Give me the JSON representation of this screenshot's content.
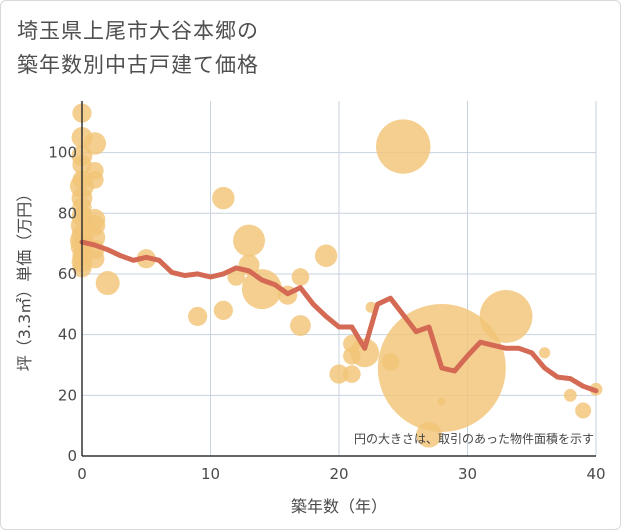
{
  "title": "埼玉県上尾市大谷本郷の\n築年数別中古戸建て価格",
  "chart_data": {
    "type": "scatter",
    "title": "埼玉県上尾市大谷本郷の築年数別中古戸建て価格",
    "xlabel": "築年数（年）",
    "ylabel": "坪（3.3㎡）単価（万円）",
    "xlim": [
      0,
      40
    ],
    "ylim": [
      0,
      117
    ],
    "x_ticks": [
      0,
      10,
      20,
      30,
      40
    ],
    "y_ticks": [
      0,
      20,
      40,
      60,
      80,
      100
    ],
    "grid": true,
    "note": "円の大きさは、取引のあった物件面積を示す",
    "colors": {
      "bubble": "#f2c477",
      "line": "#d46a54",
      "grid": "#c7d3df",
      "axis": "#333333"
    },
    "scatter": [
      {
        "x": 0,
        "y": 113,
        "size": 1.2
      },
      {
        "x": 0,
        "y": 105,
        "size": 1.3
      },
      {
        "x": 0,
        "y": 99,
        "size": 1.3
      },
      {
        "x": 0,
        "y": 96,
        "size": 1.2
      },
      {
        "x": 0,
        "y": 91,
        "size": 1.2
      },
      {
        "x": 0,
        "y": 89,
        "size": 1.5
      },
      {
        "x": 0,
        "y": 85,
        "size": 1.3
      },
      {
        "x": 0,
        "y": 82,
        "size": 1.2
      },
      {
        "x": 0,
        "y": 79,
        "size": 1.3
      },
      {
        "x": 0,
        "y": 76,
        "size": 1.4
      },
      {
        "x": 0,
        "y": 73,
        "size": 1.3
      },
      {
        "x": 0,
        "y": 71,
        "size": 1.5
      },
      {
        "x": 0,
        "y": 69,
        "size": 1.4
      },
      {
        "x": 0,
        "y": 66,
        "size": 1.2
      },
      {
        "x": 0,
        "y": 64,
        "size": 1.3
      },
      {
        "x": 0,
        "y": 62,
        "size": 1.2
      },
      {
        "x": 1,
        "y": 103,
        "size": 1.4
      },
      {
        "x": 1,
        "y": 94,
        "size": 1.1
      },
      {
        "x": 1,
        "y": 91,
        "size": 1.1
      },
      {
        "x": 1,
        "y": 78,
        "size": 1.3
      },
      {
        "x": 1,
        "y": 76,
        "size": 1.3
      },
      {
        "x": 1,
        "y": 72,
        "size": 1.3
      },
      {
        "x": 1,
        "y": 68,
        "size": 1.2
      },
      {
        "x": 1,
        "y": 65,
        "size": 1.2
      },
      {
        "x": 2,
        "y": 57,
        "size": 1.5
      },
      {
        "x": 5,
        "y": 65,
        "size": 1.2
      },
      {
        "x": 9,
        "y": 46,
        "size": 1.2
      },
      {
        "x": 11,
        "y": 85,
        "size": 1.4
      },
      {
        "x": 11,
        "y": 48,
        "size": 1.2
      },
      {
        "x": 12,
        "y": 59,
        "size": 1.1
      },
      {
        "x": 13,
        "y": 71,
        "size": 2.0
      },
      {
        "x": 13,
        "y": 63,
        "size": 1.3
      },
      {
        "x": 14,
        "y": 55,
        "size": 2.5
      },
      {
        "x": 16,
        "y": 53,
        "size": 1.2
      },
      {
        "x": 17,
        "y": 59,
        "size": 1.1
      },
      {
        "x": 17,
        "y": 43,
        "size": 1.3
      },
      {
        "x": 19,
        "y": 66,
        "size": 1.4
      },
      {
        "x": 20,
        "y": 27,
        "size": 1.2
      },
      {
        "x": 21,
        "y": 37,
        "size": 1.1
      },
      {
        "x": 21,
        "y": 33,
        "size": 1.1
      },
      {
        "x": 21,
        "y": 27,
        "size": 1.1
      },
      {
        "x": 22,
        "y": 34,
        "size": 1.8
      },
      {
        "x": 22.5,
        "y": 49,
        "size": 0.7
      },
      {
        "x": 24,
        "y": 31,
        "size": 1.1
      },
      {
        "x": 25,
        "y": 102,
        "size": 3.4
      },
      {
        "x": 27,
        "y": 7,
        "size": 1.6
      },
      {
        "x": 28,
        "y": 29,
        "size": 8.0
      },
      {
        "x": 28,
        "y": 18,
        "size": 0.5
      },
      {
        "x": 33,
        "y": 46,
        "size": 3.3
      },
      {
        "x": 36,
        "y": 34,
        "size": 0.7
      },
      {
        "x": 38,
        "y": 20,
        "size": 0.8
      },
      {
        "x": 39,
        "y": 15,
        "size": 1.0
      },
      {
        "x": 40,
        "y": 22,
        "size": 0.8
      }
    ],
    "line": {
      "x": [
        0,
        1,
        2,
        3,
        4,
        5,
        6,
        7,
        8,
        9,
        10,
        11,
        12,
        13,
        14,
        15,
        16,
        17,
        18,
        19,
        20,
        21,
        22,
        23,
        24,
        25,
        26,
        27,
        28,
        29,
        30,
        31,
        32,
        33,
        34,
        35,
        36,
        37,
        38,
        39,
        40
      ],
      "y": [
        70.5,
        69.5,
        68,
        66,
        64.5,
        65.5,
        64.5,
        60.5,
        59.5,
        60,
        59,
        60,
        62,
        61,
        58,
        56.5,
        53.5,
        55.5,
        50,
        46,
        42.5,
        42.5,
        35.5,
        50,
        52,
        46.5,
        41,
        42.5,
        29,
        28,
        33,
        37.5,
        36.5,
        35.5,
        35.5,
        34,
        29,
        26,
        25.5,
        23,
        21.5
      ]
    }
  }
}
